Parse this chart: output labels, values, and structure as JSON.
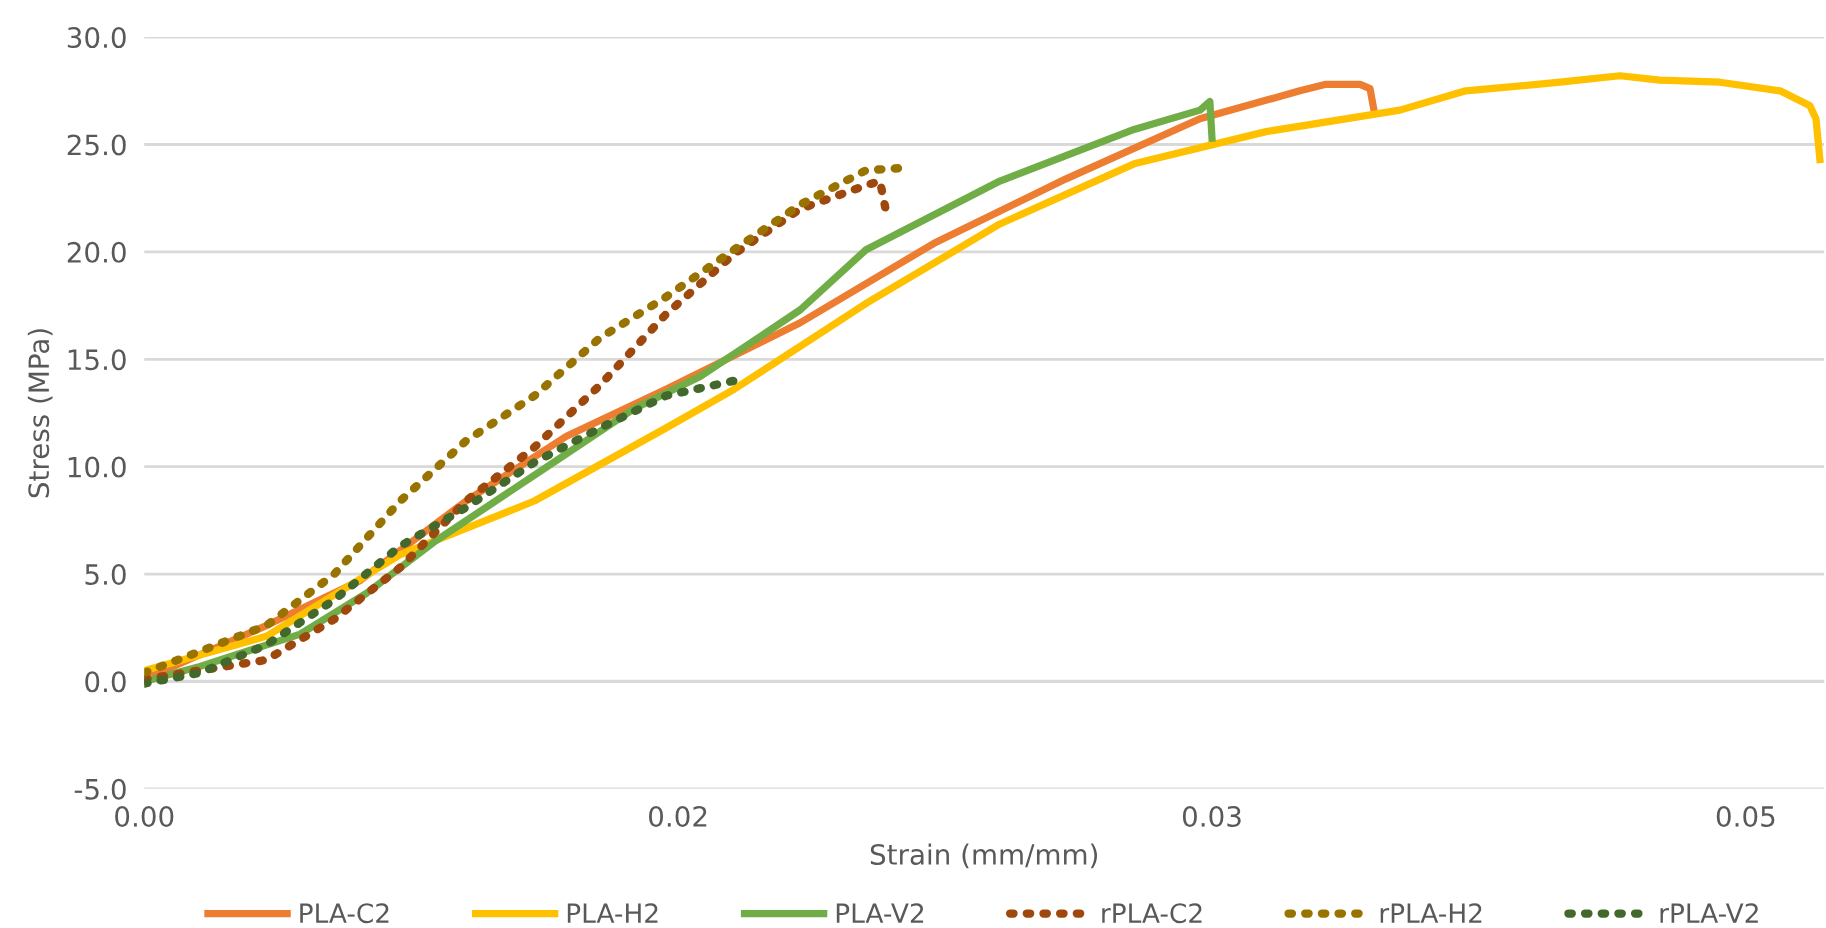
{
  "chart_data": {
    "type": "line",
    "xlabel": "Strain (mm/mm)",
    "ylabel": "Stress (MPa)",
    "xlim": [
      0,
      0.0472
    ],
    "xticks": [
      {
        "value": 0,
        "label": "0.00"
      },
      {
        "value": 0.015,
        "label": "0.02"
      },
      {
        "value": 0.03,
        "label": "0.03"
      },
      {
        "value": 0.045,
        "label": "0.05"
      }
    ],
    "ylim": [
      -5,
      30
    ],
    "yticks": [
      {
        "value": -5,
        "label": "-5.0"
      },
      {
        "value": 0,
        "label": "0.0"
      },
      {
        "value": 5,
        "label": "5.0"
      },
      {
        "value": 10,
        "label": "10.0"
      },
      {
        "value": 15,
        "label": "15.0"
      },
      {
        "value": 20,
        "label": "20.0"
      },
      {
        "value": 25,
        "label": "25.0"
      },
      {
        "value": 30,
        "label": "30.0"
      }
    ],
    "grid": "y",
    "legend": "bottom",
    "marker": "none",
    "series": [
      {
        "name": "PLA-C2",
        "color": "#ed7d31",
        "line_style": "solid",
        "x": [
          0,
          0.00343,
          0.00607,
          0.00904,
          0.01185,
          0.01466,
          0.01843,
          0.02219,
          0.0259,
          0.02966,
          0.03247,
          0.0332,
          0.03416,
          0.03444,
          0.03455
        ],
        "values": [
          0.1,
          2.6,
          4.7,
          8.4,
          11.4,
          13.6,
          16.7,
          20.4,
          23.4,
          26.2,
          27.5,
          27.8,
          27.8,
          27.6,
          26.6
        ]
      },
      {
        "name": "PLA-H2",
        "color": "#ffc000",
        "line_style": "solid",
        "x": [
          0,
          0.00343,
          0.00719,
          0.01096,
          0.01281,
          0.01466,
          0.01657,
          0.02028,
          0.02404,
          0.02781,
          0.03152,
          0.03528,
          0.03713,
          0.03978,
          0.04146,
          0.04258,
          0.04427,
          0.04596,
          0.0468,
          0.04697,
          0.04708
        ],
        "values": [
          0.5,
          2.1,
          5.9,
          8.4,
          10.1,
          11.8,
          13.6,
          17.6,
          21.3,
          24.1,
          25.6,
          26.6,
          27.5,
          27.9,
          28.2,
          28.0,
          27.9,
          27.5,
          26.8,
          26.2,
          24.3
        ]
      },
      {
        "name": "PLA-V2",
        "color": "#70ad47",
        "line_style": "solid",
        "x": [
          0,
          0.00157,
          0.00438,
          0.00624,
          0.00815,
          0.01096,
          0.01376,
          0.01562,
          0.01843,
          0.02028,
          0.02404,
          0.02781,
          0.02966,
          0.02994,
          0.03
        ],
        "values": [
          0,
          0.7,
          2.2,
          4.1,
          6.5,
          9.6,
          12.7,
          14.2,
          17.3,
          20.1,
          23.3,
          25.7,
          26.6,
          27.0,
          25.3
        ]
      },
      {
        "name": "rPLA-C2",
        "color": "#9e480e",
        "line_style": "dotted",
        "x": [
          0,
          0.00343,
          0.00534,
          0.00719,
          0.00904,
          0.01096,
          0.01281,
          0.01466,
          0.01657,
          0.01843,
          0.02028,
          0.02067,
          0.02084
        ],
        "values": [
          0.1,
          1.0,
          2.9,
          5.3,
          8.4,
          10.9,
          13.8,
          17.1,
          19.9,
          22.0,
          23.1,
          23.3,
          21.9
        ]
      },
      {
        "name": "rPLA-H2",
        "color": "#997300",
        "line_style": "dotted",
        "x": [
          0,
          0.00343,
          0.00534,
          0.00719,
          0.00904,
          0.01096,
          0.01281,
          0.01466,
          0.01657,
          0.01843,
          0.02028,
          0.02124
        ],
        "values": [
          0.4,
          2.6,
          5.0,
          8.4,
          11.2,
          13.3,
          16.0,
          17.9,
          20.1,
          22.2,
          23.8,
          23.9
        ]
      },
      {
        "name": "rPLA-V2",
        "color": "#43682b",
        "line_style": "dotted",
        "x": [
          0,
          0.00157,
          0.00343,
          0.00534,
          0.00719,
          0.00904,
          0.01096,
          0.01281,
          0.01466,
          0.01657,
          0.01691
        ],
        "values": [
          -0.1,
          0.4,
          1.7,
          3.8,
          6.3,
          8.1,
          10.2,
          11.8,
          13.3,
          14.0,
          14.0
        ]
      }
    ]
  }
}
